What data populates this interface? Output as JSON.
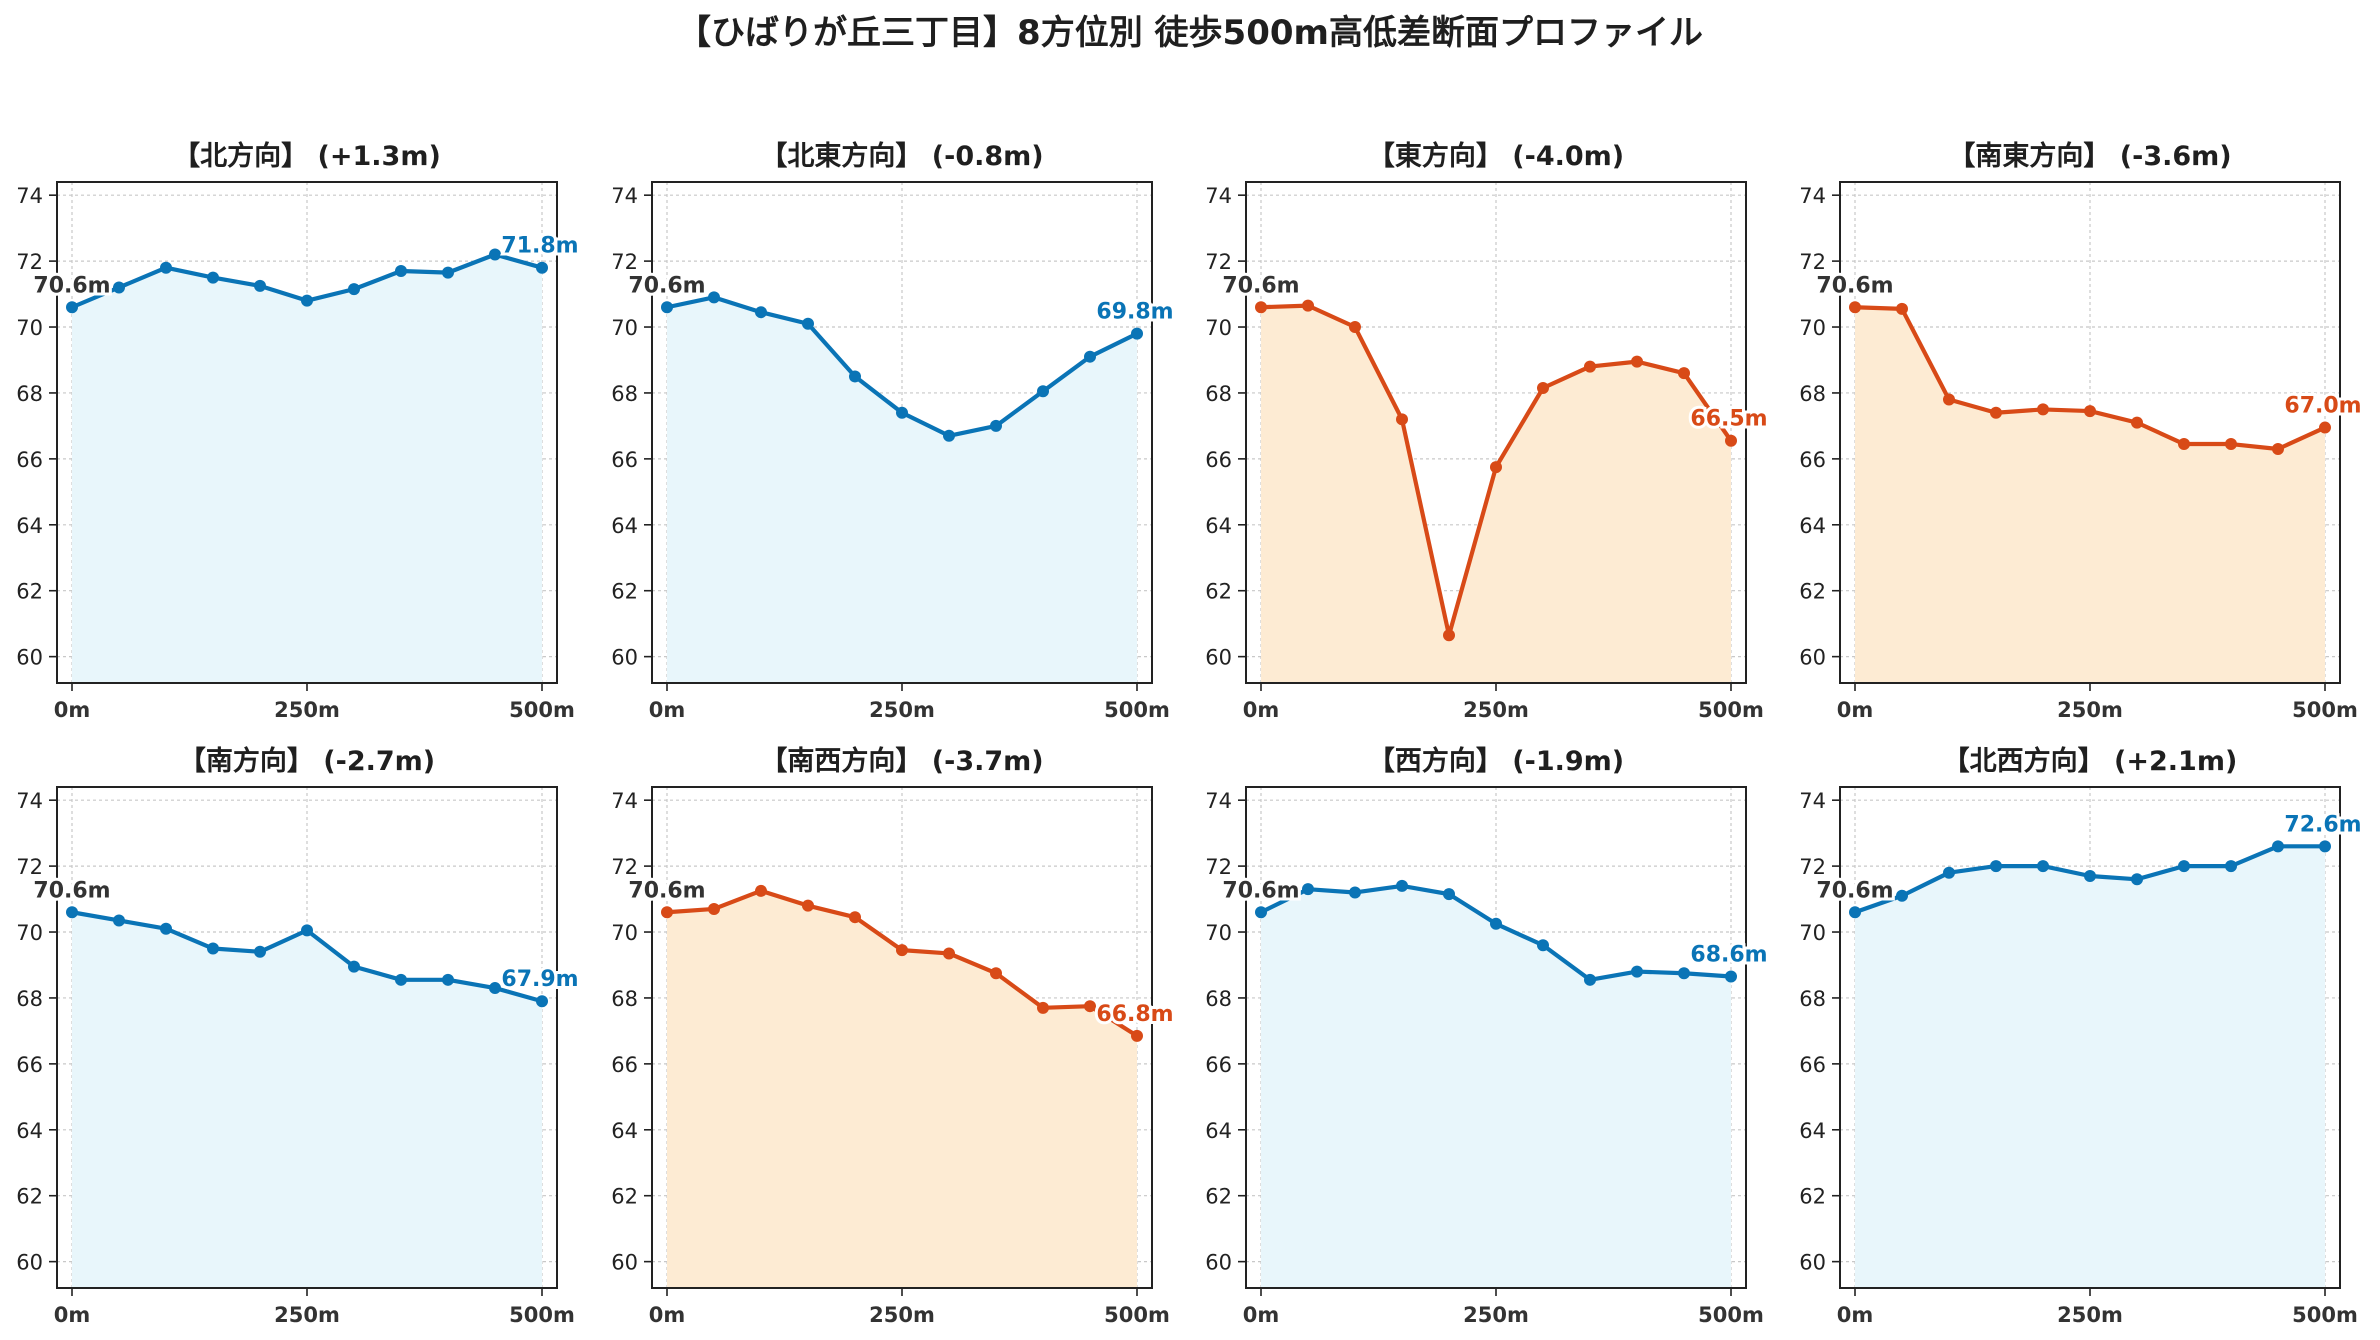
{
  "figure": {
    "title": "【ひばりが丘三丁目】8方位別 徒歩500m高低差断面プロファイル"
  },
  "colors": {
    "up_line": "#0a74b6",
    "up_fill": "#e8f6fb",
    "down_line": "#d84a17",
    "down_fill": "#fdebd3",
    "start_label": "#333333",
    "grid": "#c8c8c8"
  },
  "chart_data": [
    {
      "type": "area",
      "title": "【北方向】 (+1.3m)",
      "trend": "up",
      "x": [
        0,
        50,
        100,
        150,
        200,
        250,
        300,
        350,
        400,
        450,
        500
      ],
      "y": [
        70.6,
        71.2,
        71.8,
        71.5,
        71.25,
        70.8,
        71.15,
        71.7,
        71.65,
        72.2,
        71.8
      ],
      "start_label": "70.6m",
      "end_label": "71.8m",
      "xticks": [
        "0m",
        "250m",
        "500m"
      ],
      "yticks": [
        60,
        62,
        64,
        66,
        68,
        70,
        72,
        74
      ],
      "xlim": [
        0,
        500
      ],
      "ylim": [
        59.2,
        74.4
      ],
      "grid": true
    },
    {
      "type": "area",
      "title": "【北東方向】 (-0.8m)",
      "trend": "up",
      "x": [
        0,
        50,
        100,
        150,
        200,
        250,
        300,
        350,
        400,
        450,
        500
      ],
      "y": [
        70.6,
        70.9,
        70.45,
        70.1,
        68.5,
        67.4,
        66.7,
        67.0,
        68.05,
        69.1,
        69.8
      ],
      "start_label": "70.6m",
      "end_label": "69.8m",
      "xticks": [
        "0m",
        "250m",
        "500m"
      ],
      "yticks": [
        60,
        62,
        64,
        66,
        68,
        70,
        72,
        74
      ],
      "xlim": [
        0,
        500
      ],
      "ylim": [
        59.2,
        74.4
      ],
      "grid": true
    },
    {
      "type": "area",
      "title": "【東方向】 (-4.0m)",
      "trend": "down",
      "x": [
        0,
        50,
        100,
        150,
        200,
        250,
        300,
        350,
        400,
        450,
        500
      ],
      "y": [
        70.6,
        70.65,
        70.0,
        67.2,
        60.65,
        65.75,
        68.15,
        68.8,
        68.95,
        68.6,
        66.55
      ],
      "start_label": "70.6m",
      "end_label": "66.5m",
      "xticks": [
        "0m",
        "250m",
        "500m"
      ],
      "yticks": [
        60,
        62,
        64,
        66,
        68,
        70,
        72,
        74
      ],
      "xlim": [
        0,
        500
      ],
      "ylim": [
        59.2,
        74.4
      ],
      "grid": true
    },
    {
      "type": "area",
      "title": "【南東方向】 (-3.6m)",
      "trend": "down",
      "x": [
        0,
        50,
        100,
        150,
        200,
        250,
        300,
        350,
        400,
        450,
        500
      ],
      "y": [
        70.6,
        70.55,
        67.8,
        67.4,
        67.5,
        67.45,
        67.1,
        66.45,
        66.45,
        66.3,
        66.95
      ],
      "start_label": "70.6m",
      "end_label": "67.0m",
      "xticks": [
        "0m",
        "250m",
        "500m"
      ],
      "yticks": [
        60,
        62,
        64,
        66,
        68,
        70,
        72,
        74
      ],
      "xlim": [
        0,
        500
      ],
      "ylim": [
        59.2,
        74.4
      ],
      "grid": true
    },
    {
      "type": "area",
      "title": "【南方向】 (-2.7m)",
      "trend": "up",
      "x": [
        0,
        50,
        100,
        150,
        200,
        250,
        300,
        350,
        400,
        450,
        500
      ],
      "y": [
        70.6,
        70.35,
        70.1,
        69.5,
        69.4,
        70.05,
        68.95,
        68.55,
        68.55,
        68.3,
        67.9
      ],
      "start_label": "70.6m",
      "end_label": "67.9m",
      "xticks": [
        "0m",
        "250m",
        "500m"
      ],
      "yticks": [
        60,
        62,
        64,
        66,
        68,
        70,
        72,
        74
      ],
      "xlim": [
        0,
        500
      ],
      "ylim": [
        59.2,
        74.4
      ],
      "grid": true
    },
    {
      "type": "area",
      "title": "【南西方向】 (-3.7m)",
      "trend": "down",
      "x": [
        0,
        50,
        100,
        150,
        200,
        250,
        300,
        350,
        400,
        450,
        500
      ],
      "y": [
        70.6,
        70.7,
        71.25,
        70.8,
        70.45,
        69.45,
        69.35,
        68.75,
        67.7,
        67.75,
        66.85
      ],
      "start_label": "70.6m",
      "end_label": "66.8m",
      "xticks": [
        "0m",
        "250m",
        "500m"
      ],
      "yticks": [
        60,
        62,
        64,
        66,
        68,
        70,
        72,
        74
      ],
      "xlim": [
        0,
        500
      ],
      "ylim": [
        59.2,
        74.4
      ],
      "grid": true
    },
    {
      "type": "area",
      "title": "【西方向】 (-1.9m)",
      "trend": "up",
      "x": [
        0,
        50,
        100,
        150,
        200,
        250,
        300,
        350,
        400,
        450,
        500
      ],
      "y": [
        70.6,
        71.3,
        71.2,
        71.4,
        71.15,
        70.25,
        69.6,
        68.55,
        68.8,
        68.75,
        68.65
      ],
      "start_label": "70.6m",
      "end_label": "68.6m",
      "xticks": [
        "0m",
        "250m",
        "500m"
      ],
      "yticks": [
        60,
        62,
        64,
        66,
        68,
        70,
        72,
        74
      ],
      "xlim": [
        0,
        500
      ],
      "ylim": [
        59.2,
        74.4
      ],
      "grid": true
    },
    {
      "type": "area",
      "title": "【北西方向】 (+2.1m)",
      "trend": "up",
      "x": [
        0,
        50,
        100,
        150,
        200,
        250,
        300,
        350,
        400,
        450,
        500
      ],
      "y": [
        70.6,
        71.1,
        71.8,
        72.0,
        72.0,
        71.7,
        71.6,
        72.0,
        72.0,
        72.6,
        72.6
      ],
      "start_label": "70.6m",
      "end_label": "72.6m",
      "xticks": [
        "0m",
        "250m",
        "500m"
      ],
      "yticks": [
        60,
        62,
        64,
        66,
        68,
        70,
        72,
        74
      ],
      "xlim": [
        0,
        500
      ],
      "ylim": [
        59.2,
        74.4
      ],
      "grid": true
    }
  ]
}
